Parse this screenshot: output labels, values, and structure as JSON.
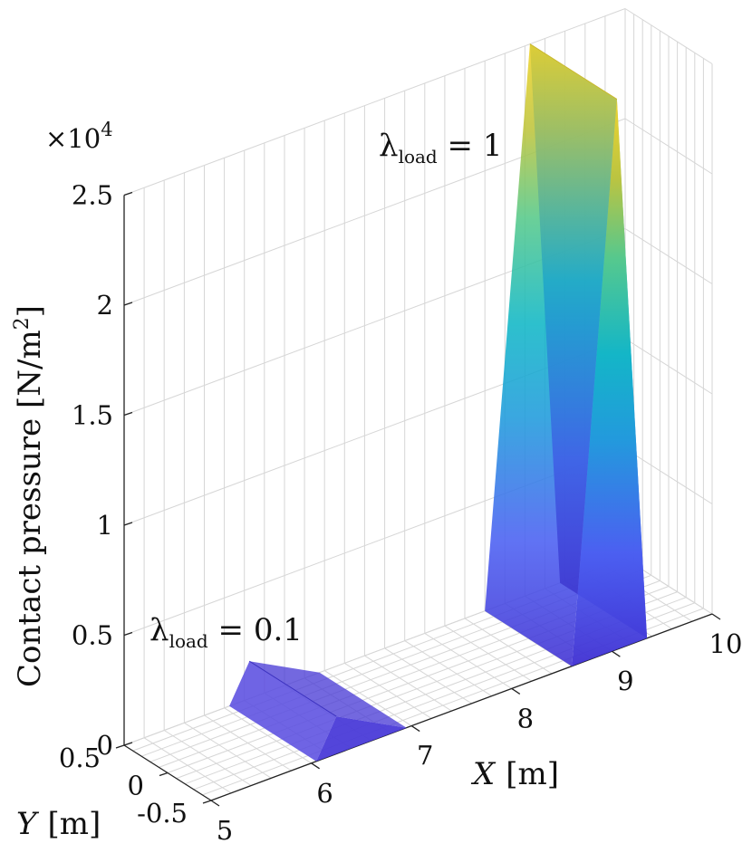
{
  "chart_data": {
    "type": "surface3d",
    "title": "",
    "xlabel": {
      "var": "X",
      "unit": "[m]"
    },
    "ylabel": {
      "var": "Y",
      "unit": "[m]"
    },
    "zlabel": {
      "text": "Contact pressure [N/m",
      "sup": "2",
      "close": "]"
    },
    "exponent": {
      "base": "×10",
      "power": "4"
    },
    "xlim": [
      5,
      10
    ],
    "ylim": [
      -0.5,
      0.5
    ],
    "zlim": [
      0,
      25000
    ],
    "x_ticks": [
      "5",
      "6",
      "7",
      "8",
      "9",
      "10"
    ],
    "x_tick_values": [
      5,
      6,
      7,
      8,
      9,
      10
    ],
    "y_ticks": [
      "-0.5",
      "0",
      "0.5"
    ],
    "y_tick_values": [
      -0.5,
      0,
      0.5
    ],
    "z_ticks": [
      "0",
      "0.5",
      "1",
      "1.5",
      "2",
      "2.5"
    ],
    "z_tick_values": [
      0,
      5000,
      10000,
      15000,
      20000,
      25000
    ],
    "colormap": "parula",
    "series": [
      {
        "name": "λload = 0.1",
        "label_main": "λ",
        "label_sub": "load",
        "label_rest": " = 0.1",
        "x_range": [
          6.05,
          6.95
        ],
        "y_range": [
          -0.5,
          0.5
        ],
        "peak_x": 6.25,
        "peak_pressure": 1700
      },
      {
        "name": "λload = 1",
        "label_main": "λ",
        "label_sub": "load",
        "label_rest": " = 1",
        "x_range": [
          8.6,
          9.35
        ],
        "y_range": [
          -0.5,
          0.5
        ],
        "peak_x": 9.05,
        "peak_pressure": 25000
      }
    ]
  }
}
